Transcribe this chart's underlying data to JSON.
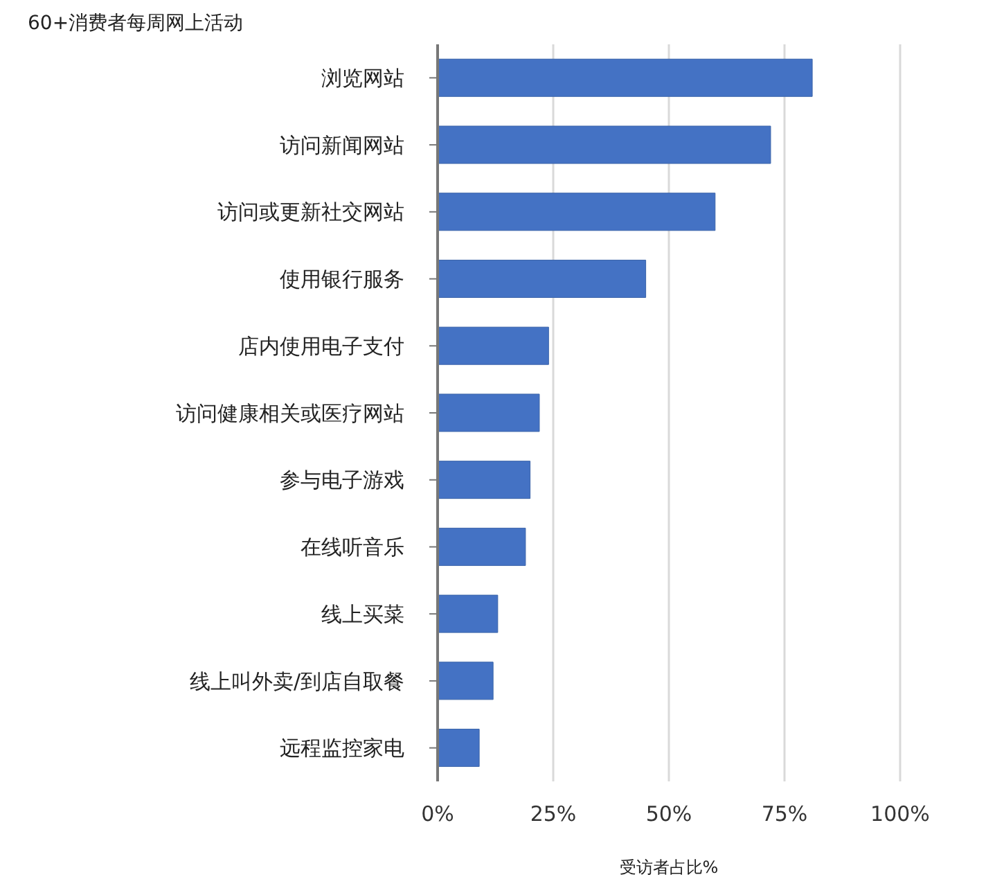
{
  "chart_data": {
    "type": "bar",
    "orientation": "horizontal",
    "title": "60+消费者每周网上活动",
    "xlabel": "受访者占比%",
    "categories": [
      "浏览网站",
      "访问新闻网站",
      "访问或更新社交网站",
      "使用银行服务",
      "店内使用电子支付",
      "访问健康相关或医疗网站",
      "参与电子游戏",
      "在线听音乐",
      "线上买菜",
      "线上叫外卖/到店自取餐",
      "远程监控家电"
    ],
    "values": [
      81,
      72,
      60,
      45,
      24,
      22,
      20,
      19,
      13,
      12,
      9
    ],
    "color": "#4472c4",
    "xlim": [
      0,
      100
    ],
    "xticks": [
      {
        "value": 0,
        "label": "0%"
      },
      {
        "value": 25,
        "label": "25%"
      },
      {
        "value": 50,
        "label": "50%"
      },
      {
        "value": 75,
        "label": "75%"
      },
      {
        "value": 100,
        "label": "100%"
      }
    ],
    "grid": "x",
    "legend": false
  }
}
